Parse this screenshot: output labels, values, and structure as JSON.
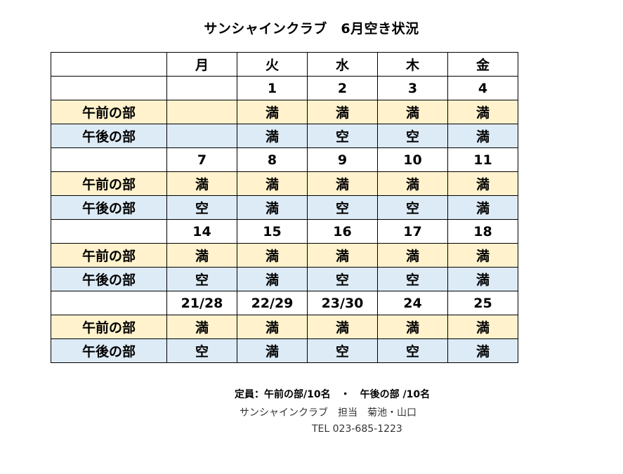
{
  "title": "サンシャインクラブ　6月空き状況",
  "weekdays": [
    "月",
    "火",
    "水",
    "木",
    "金"
  ],
  "weeks": [
    {
      "dates": [
        "",
        "1",
        "2",
        "3",
        "4"
      ],
      "am": {
        "label": "午前の部",
        "cells": [
          "",
          "満",
          "満",
          "満",
          "満"
        ]
      },
      "pm": {
        "label": "午後の部",
        "cells": [
          "",
          "満",
          "空",
          "空",
          "満"
        ]
      }
    },
    {
      "dates": [
        "7",
        "8",
        "9",
        "10",
        "11"
      ],
      "am": {
        "label": "午前の部",
        "cells": [
          "満",
          "満",
          "満",
          "満",
          "満"
        ]
      },
      "pm": {
        "label": "午後の部",
        "cells": [
          "空",
          "満",
          "空",
          "空",
          "満"
        ]
      }
    },
    {
      "dates": [
        "14",
        "15",
        "16",
        "17",
        "18"
      ],
      "am": {
        "label": "午前の部",
        "cells": [
          "満",
          "満",
          "満",
          "満",
          "満"
        ]
      },
      "pm": {
        "label": "午後の部",
        "cells": [
          "空",
          "満",
          "空",
          "空",
          "満"
        ]
      }
    },
    {
      "dates": [
        "21/28",
        "22/29",
        "23/30",
        "24",
        "25"
      ],
      "am": {
        "label": "午前の部",
        "cells": [
          "満",
          "満",
          "満",
          "満",
          "満"
        ]
      },
      "pm": {
        "label": "午後の部",
        "cells": [
          "空",
          "満",
          "空",
          "空",
          "満"
        ]
      }
    }
  ],
  "footer": {
    "capacity": "定員：午前の部/10名　・　午後の部 /10名",
    "contact": "サンシャインクラブ　担当　菊池・山口",
    "phone": "TEL 023-685-1223"
  },
  "colors": {
    "am_row": "#fff2cc",
    "pm_row": "#ddebf7"
  }
}
